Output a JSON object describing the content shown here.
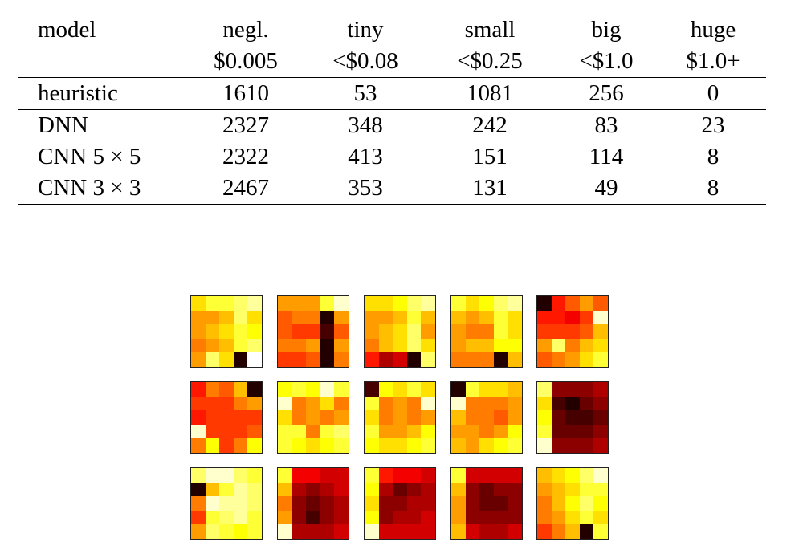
{
  "table": {
    "columns": [
      {
        "line1": "model",
        "line2": ""
      },
      {
        "line1": "negl.",
        "line2": "$0.005"
      },
      {
        "line1": "tiny",
        "line2": "<$0.08"
      },
      {
        "line1": "small",
        "line2": "<$0.25"
      },
      {
        "line1": "big",
        "line2": "<$1.0"
      },
      {
        "line1": "huge",
        "line2": "$1.0+"
      }
    ],
    "baseline": {
      "model": "heuristic",
      "values": [
        "1610",
        "53",
        "1081",
        "256",
        "0"
      ]
    },
    "rows": [
      {
        "model": "DNN",
        "values": [
          "2327",
          "348",
          "242",
          "83",
          "23"
        ]
      },
      {
        "model": "CNN 5 × 5",
        "values": [
          "2322",
          "413",
          "151",
          "114",
          "8"
        ]
      },
      {
        "model": "CNN 3 × 3",
        "values": [
          "2467",
          "353",
          "131",
          "49",
          "8"
        ]
      }
    ]
  },
  "filters": {
    "colormap": "hot",
    "grids": [
      [
        [
          0.7,
          0.8,
          0.8,
          0.85,
          0.9
        ],
        [
          0.6,
          0.6,
          0.65,
          0.85,
          0.7
        ],
        [
          0.6,
          0.65,
          0.7,
          0.8,
          0.75
        ],
        [
          0.55,
          0.6,
          0.65,
          0.8,
          0.85
        ],
        [
          0.6,
          0.85,
          0.7,
          0.05,
          1.0
        ]
      ],
      [
        [
          0.6,
          0.6,
          0.6,
          0.8,
          0.95
        ],
        [
          0.5,
          0.55,
          0.55,
          0.05,
          0.6
        ],
        [
          0.5,
          0.45,
          0.45,
          0.1,
          0.5
        ],
        [
          0.55,
          0.55,
          0.6,
          0.05,
          0.6
        ],
        [
          0.45,
          0.45,
          0.5,
          0.05,
          0.55
        ]
      ],
      [
        [
          0.7,
          0.7,
          0.75,
          0.85,
          0.9
        ],
        [
          0.6,
          0.6,
          0.65,
          0.8,
          0.65
        ],
        [
          0.6,
          0.65,
          0.7,
          0.85,
          0.6
        ],
        [
          0.55,
          0.65,
          0.7,
          0.85,
          0.7
        ],
        [
          0.4,
          0.25,
          0.3,
          0.05,
          0.85
        ]
      ],
      [
        [
          0.8,
          0.7,
          0.75,
          0.85,
          0.9
        ],
        [
          0.65,
          0.6,
          0.65,
          0.8,
          0.7
        ],
        [
          0.6,
          0.55,
          0.55,
          0.8,
          0.7
        ],
        [
          0.6,
          0.65,
          0.65,
          0.75,
          0.75
        ],
        [
          0.55,
          0.55,
          0.55,
          0.05,
          0.65
        ]
      ],
      [
        [
          0.05,
          0.4,
          0.5,
          0.6,
          0.5
        ],
        [
          0.4,
          0.4,
          0.35,
          0.45,
          0.95
        ],
        [
          0.45,
          0.45,
          0.45,
          0.5,
          0.65
        ],
        [
          0.6,
          0.85,
          0.55,
          0.65,
          0.7
        ],
        [
          0.5,
          0.55,
          0.6,
          0.7,
          0.8
        ]
      ],
      [
        [
          0.4,
          0.55,
          0.5,
          0.65,
          0.05
        ],
        [
          0.45,
          0.45,
          0.45,
          0.55,
          0.6
        ],
        [
          0.4,
          0.45,
          0.45,
          0.45,
          0.45
        ],
        [
          0.95,
          0.45,
          0.45,
          0.45,
          0.5
        ],
        [
          0.55,
          0.75,
          0.45,
          0.55,
          0.75
        ]
      ],
      [
        [
          0.75,
          0.8,
          0.75,
          0.95,
          0.8
        ],
        [
          0.95,
          0.55,
          0.6,
          0.7,
          0.55
        ],
        [
          0.7,
          0.55,
          0.6,
          0.55,
          0.6
        ],
        [
          0.8,
          0.8,
          0.55,
          0.8,
          0.85
        ],
        [
          0.8,
          0.75,
          0.7,
          0.75,
          0.8
        ]
      ],
      [
        [
          0.1,
          0.75,
          0.7,
          0.8,
          0.7
        ],
        [
          0.8,
          0.55,
          0.6,
          0.55,
          0.95
        ],
        [
          0.7,
          0.55,
          0.6,
          0.55,
          0.6
        ],
        [
          0.8,
          0.6,
          0.6,
          0.65,
          0.75
        ],
        [
          0.75,
          0.7,
          0.7,
          0.75,
          0.8
        ]
      ],
      [
        [
          0.05,
          0.8,
          0.7,
          0.7,
          0.65
        ],
        [
          0.95,
          0.55,
          0.55,
          0.55,
          0.6
        ],
        [
          0.65,
          0.55,
          0.55,
          0.5,
          0.6
        ],
        [
          0.6,
          0.6,
          0.55,
          0.6,
          0.75
        ],
        [
          0.65,
          0.6,
          0.7,
          0.75,
          0.8
        ]
      ],
      [
        [
          0.85,
          0.2,
          0.2,
          0.2,
          0.25
        ],
        [
          0.7,
          0.1,
          0.05,
          0.15,
          0.2
        ],
        [
          0.75,
          0.15,
          0.1,
          0.1,
          0.15
        ],
        [
          0.8,
          0.15,
          0.15,
          0.15,
          0.2
        ],
        [
          0.95,
          0.2,
          0.2,
          0.2,
          0.25
        ]
      ],
      [
        [
          0.85,
          0.95,
          0.95,
          0.85,
          0.8
        ],
        [
          0.05,
          0.65,
          0.8,
          0.9,
          0.85
        ],
        [
          0.55,
          0.95,
          0.9,
          0.9,
          0.85
        ],
        [
          0.45,
          0.8,
          0.85,
          0.9,
          0.8
        ],
        [
          0.6,
          0.85,
          0.8,
          0.75,
          0.8
        ]
      ],
      [
        [
          0.8,
          0.35,
          0.35,
          0.3,
          0.3
        ],
        [
          0.65,
          0.25,
          0.2,
          0.25,
          0.3
        ],
        [
          0.55,
          0.2,
          0.15,
          0.2,
          0.25
        ],
        [
          0.6,
          0.2,
          0.1,
          0.2,
          0.25
        ],
        [
          0.95,
          0.25,
          0.25,
          0.25,
          0.3
        ]
      ],
      [
        [
          0.8,
          0.4,
          0.35,
          0.35,
          0.3
        ],
        [
          0.75,
          0.25,
          0.15,
          0.2,
          0.25
        ],
        [
          0.7,
          0.2,
          0.2,
          0.25,
          0.25
        ],
        [
          0.75,
          0.2,
          0.25,
          0.25,
          0.3
        ],
        [
          0.95,
          0.3,
          0.3,
          0.3,
          0.3
        ]
      ],
      [
        [
          0.8,
          0.3,
          0.3,
          0.3,
          0.3
        ],
        [
          0.65,
          0.2,
          0.15,
          0.2,
          0.2
        ],
        [
          0.6,
          0.2,
          0.15,
          0.15,
          0.2
        ],
        [
          0.6,
          0.2,
          0.2,
          0.2,
          0.2
        ],
        [
          0.65,
          0.3,
          0.25,
          0.25,
          0.3
        ]
      ],
      [
        [
          0.65,
          0.7,
          0.75,
          0.85,
          0.95
        ],
        [
          0.6,
          0.65,
          0.7,
          0.8,
          0.8
        ],
        [
          0.55,
          0.65,
          0.75,
          0.85,
          0.75
        ],
        [
          0.55,
          0.6,
          0.7,
          0.8,
          0.7
        ],
        [
          0.45,
          0.55,
          0.65,
          0.05,
          0.8
        ]
      ]
    ]
  }
}
